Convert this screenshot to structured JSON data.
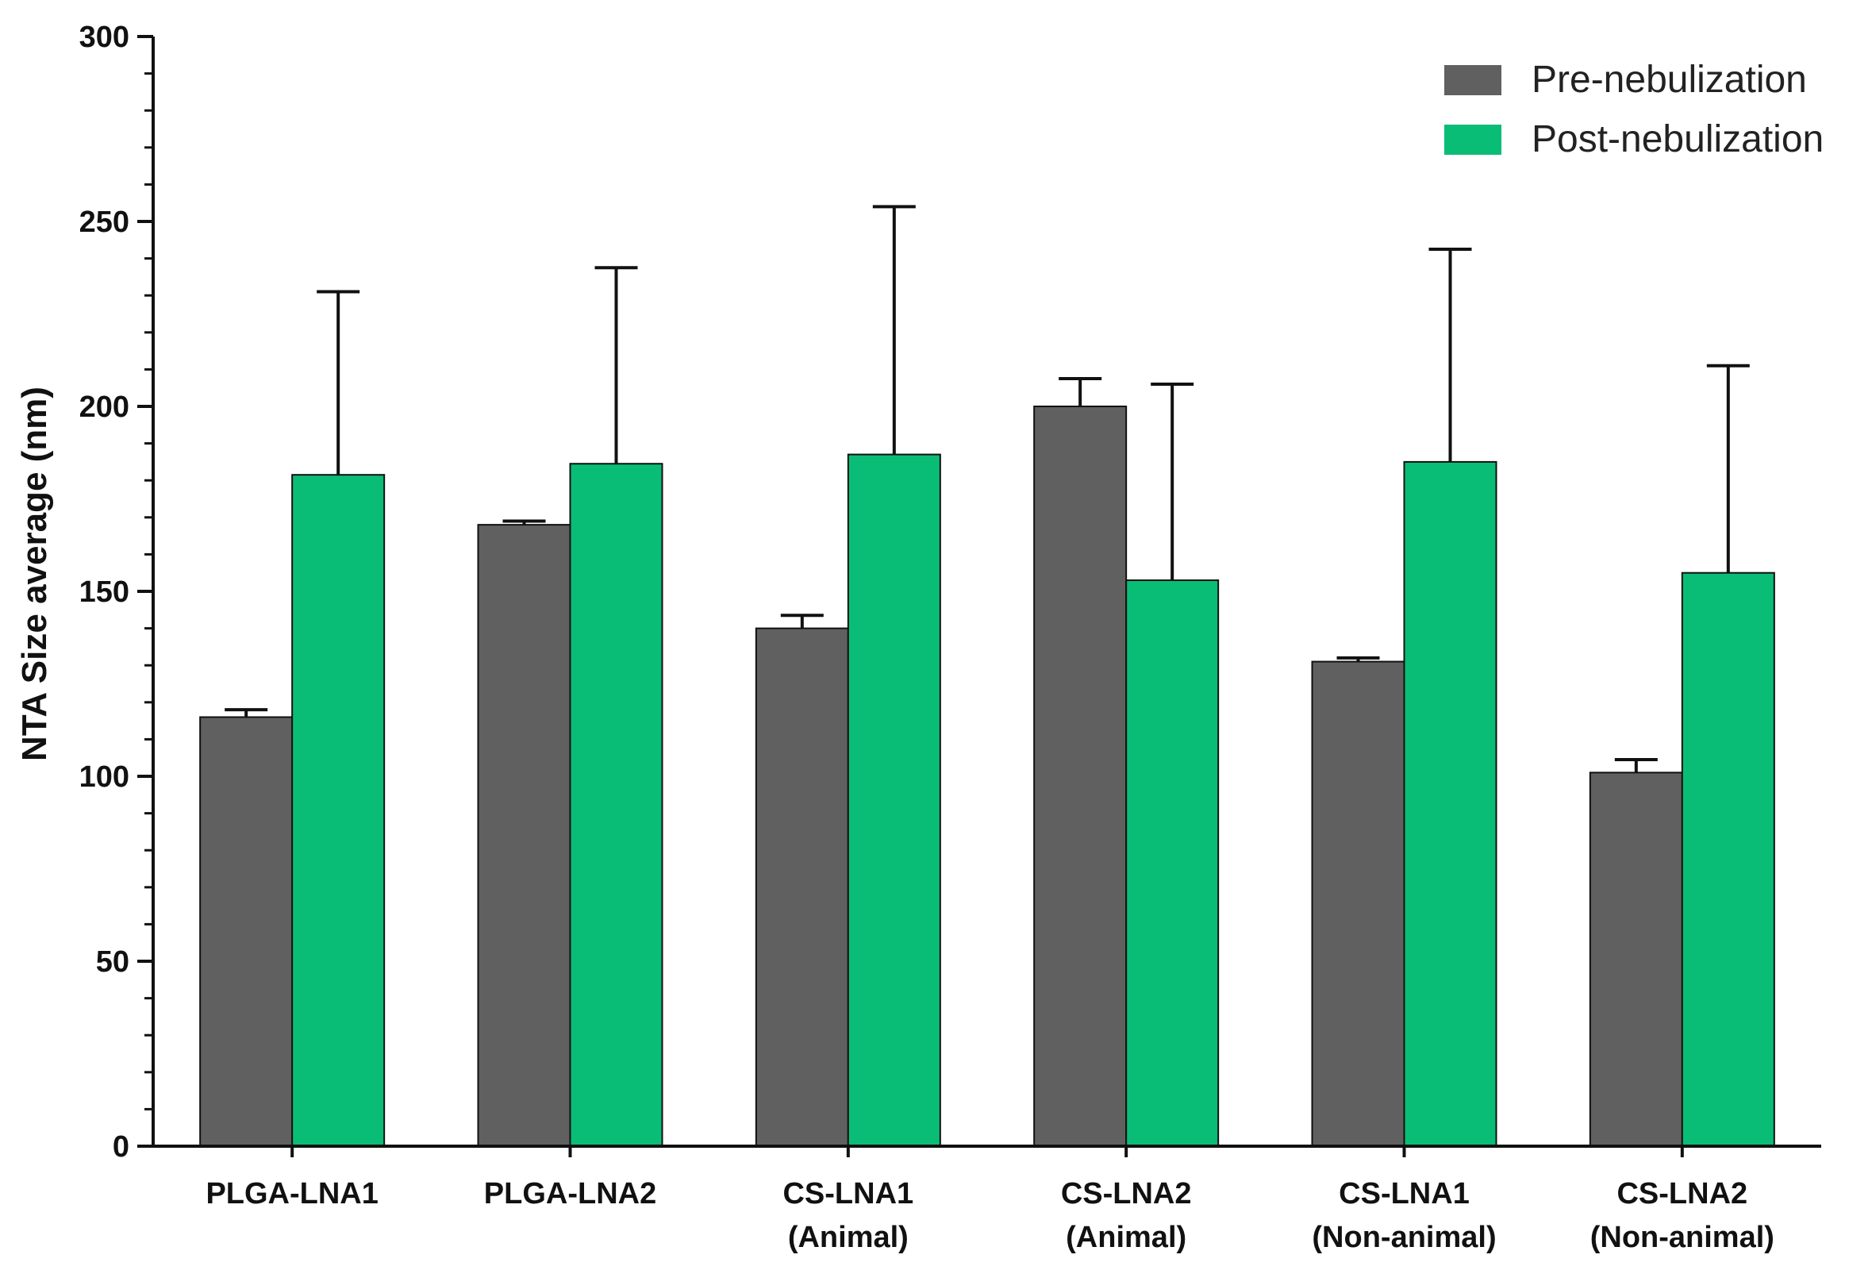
{
  "chart_data": {
    "type": "bar",
    "title": "",
    "xlabel": "",
    "ylabel": "NTA Size average (nm)",
    "ylim": [
      0,
      300
    ],
    "yticks": [
      0,
      50,
      100,
      150,
      200,
      250,
      300
    ],
    "grid": false,
    "legend_position": "top-right",
    "categories": [
      [
        "PLGA-LNA1"
      ],
      [
        "PLGA-LNA2"
      ],
      [
        "CS-LNA1",
        "(Animal)"
      ],
      [
        "CS-LNA2",
        "(Animal)"
      ],
      [
        "CS-LNA1",
        "(Non-animal)"
      ],
      [
        "CS-LNA2",
        "(Non-animal)"
      ]
    ],
    "series": [
      {
        "name": "Pre-nebulization",
        "color": "#606060",
        "values": [
          116,
          168,
          140,
          200,
          131,
          101
        ],
        "errors": [
          2,
          1,
          3.5,
          7.5,
          1,
          3.5
        ]
      },
      {
        "name": "Post-nebulization",
        "color": "#0abd76",
        "values": [
          181.5,
          184.5,
          187,
          153,
          185,
          155
        ],
        "errors": [
          49.5,
          53,
          67,
          53,
          57.5,
          56
        ]
      }
    ]
  }
}
